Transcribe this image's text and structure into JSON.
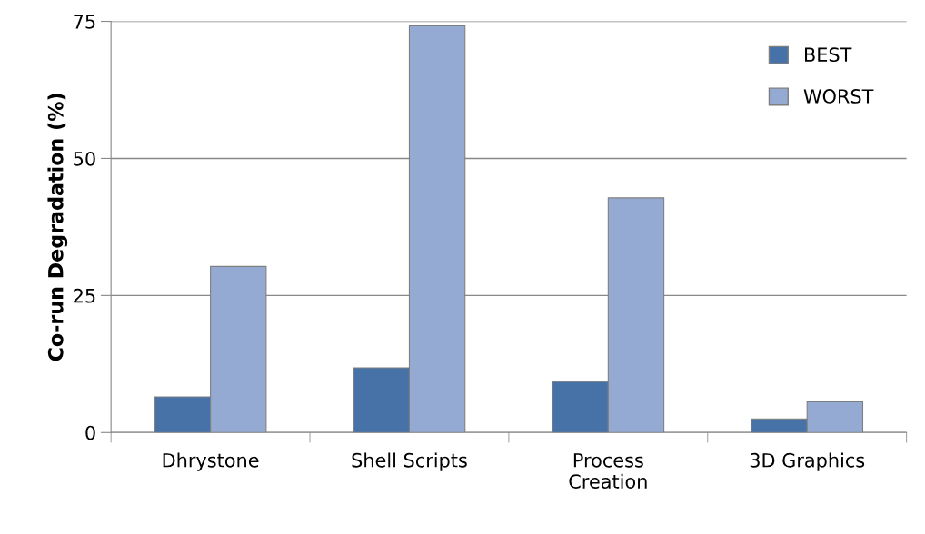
{
  "chart_data": {
    "type": "bar",
    "ylabel": "Co-run Degradation (%)",
    "categories": [
      "Dhrystone",
      "Shell Scripts",
      "Process\nCreation",
      "3D Graphics"
    ],
    "series": [
      {
        "name": "BEST",
        "color": "#4672a8",
        "values": [
          6.5,
          11.8,
          9.3,
          2.5
        ]
      },
      {
        "name": "WORST",
        "color": "#95aad3",
        "values": [
          30.3,
          74.2,
          42.8,
          5.6
        ]
      }
    ],
    "ylim": [
      0,
      75
    ],
    "yticks": [
      0,
      25,
      50,
      75
    ],
    "grid": "y",
    "legend": "top right"
  }
}
